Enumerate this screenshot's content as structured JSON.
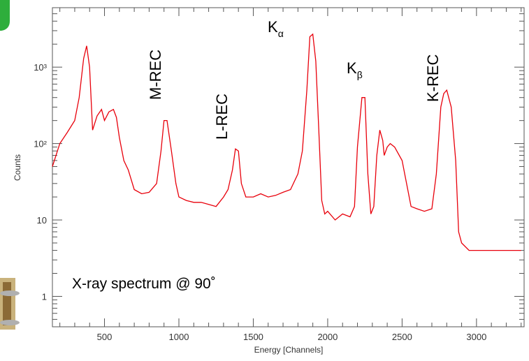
{
  "chart_data": {
    "type": "line",
    "title": "",
    "xlabel": "Energy [Channels]",
    "ylabel": "Counts",
    "xlim": [
      150,
      3320
    ],
    "ylim": [
      0.4,
      6000
    ],
    "y_scale": "log",
    "x_ticks": [
      500,
      1000,
      1500,
      2000,
      2500,
      3000
    ],
    "x_tick_labels": [
      "500",
      "1000",
      "1500",
      "2000",
      "2500",
      "3000"
    ],
    "y_ticks": [
      1,
      10,
      100,
      1000
    ],
    "y_tick_labels": [
      "1",
      "10",
      "10²",
      "10³"
    ],
    "grid": false,
    "series": [
      {
        "color": "#e8000b",
        "x": [
          150,
          200,
          250,
          300,
          330,
          360,
          380,
          400,
          420,
          450,
          480,
          500,
          530,
          560,
          580,
          600,
          630,
          660,
          700,
          750,
          800,
          850,
          880,
          900,
          920,
          950,
          980,
          1000,
          1050,
          1100,
          1150,
          1200,
          1250,
          1300,
          1330,
          1360,
          1380,
          1400,
          1420,
          1450,
          1500,
          1550,
          1600,
          1650,
          1700,
          1750,
          1800,
          1830,
          1860,
          1880,
          1900,
          1920,
          1940,
          1960,
          1980,
          2000,
          2050,
          2100,
          2150,
          2180,
          2200,
          2230,
          2250,
          2270,
          2290,
          2310,
          2330,
          2350,
          2370,
          2380,
          2400,
          2420,
          2450,
          2500,
          2530,
          2560,
          2600,
          2650,
          2700,
          2730,
          2760,
          2780,
          2800,
          2830,
          2860,
          2880,
          2900,
          2950,
          3000,
          3050,
          3100,
          3150,
          3200,
          3250,
          3300
        ],
        "y": [
          50,
          100,
          140,
          200,
          400,
          1300,
          1900,
          1000,
          150,
          230,
          280,
          200,
          260,
          280,
          220,
          120,
          60,
          45,
          25,
          22,
          23,
          30,
          80,
          200,
          200,
          80,
          30,
          20,
          18,
          17,
          17,
          16,
          15,
          20,
          25,
          45,
          85,
          80,
          30,
          20,
          20,
          22,
          20,
          21,
          23,
          25,
          40,
          80,
          500,
          2500,
          2700,
          1200,
          150,
          18,
          12,
          13,
          10,
          12,
          11,
          15,
          90,
          400,
          400,
          40,
          12,
          15,
          70,
          150,
          110,
          70,
          90,
          100,
          90,
          60,
          30,
          15,
          14,
          13,
          14,
          40,
          300,
          450,
          500,
          300,
          60,
          7,
          5,
          4,
          4,
          4,
          4,
          4,
          4,
          4,
          4
        ]
      }
    ],
    "annotations": {
      "m_rec": "M-REC",
      "l_rec": "L-REC",
      "k_alpha_main": "K",
      "k_alpha_sub": "α",
      "k_beta_main": "K",
      "k_beta_sub": "β",
      "k_rec": "K-REC",
      "spectrum_note": "X-ray spectrum @ 90˚"
    }
  }
}
